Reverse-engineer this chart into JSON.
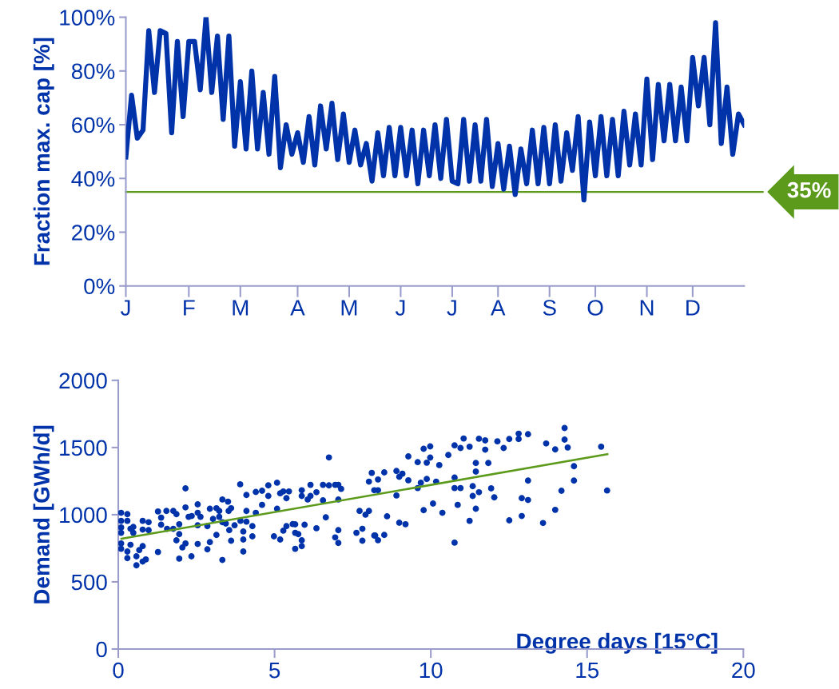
{
  "chart_data": [
    {
      "type": "line",
      "ylabel": "Fraction max. cap [%]",
      "ylim": [
        0,
        100
      ],
      "marker": "none",
      "line_style": "solid",
      "grid": false,
      "categories": [
        "J",
        null,
        null,
        null,
        null,
        null,
        null,
        null,
        null,
        null,
        null,
        "F",
        null,
        null,
        null,
        null,
        null,
        null,
        null,
        null,
        "M",
        null,
        null,
        null,
        null,
        null,
        null,
        null,
        null,
        null,
        "A",
        null,
        null,
        null,
        null,
        null,
        null,
        null,
        null,
        "M",
        null,
        null,
        null,
        null,
        null,
        null,
        null,
        null,
        "J",
        null,
        null,
        null,
        null,
        null,
        null,
        null,
        null,
        "J",
        null,
        null,
        null,
        null,
        null,
        null,
        null,
        "A",
        null,
        null,
        null,
        null,
        null,
        null,
        null,
        null,
        "S",
        null,
        null,
        null,
        null,
        null,
        null,
        null,
        "O",
        null,
        null,
        null,
        null,
        null,
        null,
        null,
        null,
        "N",
        null,
        null,
        null,
        null,
        null,
        null,
        null,
        "D",
        null,
        null,
        null,
        null,
        null,
        null,
        null,
        null,
        null
      ],
      "yticks": [
        {
          "value": 0,
          "label": "0%"
        },
        {
          "value": 20,
          "label": "20%"
        },
        {
          "value": 40,
          "label": "40%"
        },
        {
          "value": 60,
          "label": "60%"
        },
        {
          "value": 80,
          "label": "80%"
        },
        {
          "value": 100,
          "label": "100%"
        }
      ],
      "ref_lines": [
        {
          "axis": "y",
          "value": 35,
          "label": "35%",
          "color": "#5b9a1b"
        }
      ],
      "series": [
        {
          "color": "#0033aa",
          "values": [
            48,
            71,
            55,
            58,
            95,
            72,
            95,
            94,
            57,
            91,
            63,
            91,
            91,
            73,
            100,
            72,
            93,
            62,
            93,
            52,
            76,
            51,
            80,
            51,
            72,
            49,
            78,
            44,
            60,
            49,
            57,
            46,
            63,
            45,
            67,
            51,
            68,
            47,
            64,
            46,
            58,
            45,
            53,
            39,
            57,
            41,
            59,
            41,
            59,
            41,
            58,
            38,
            58,
            41,
            60,
            40,
            62,
            39,
            38,
            62,
            39,
            60,
            39,
            62,
            37,
            53,
            36,
            52,
            34,
            51,
            38,
            58,
            38,
            59,
            38,
            60,
            39,
            57,
            43,
            63,
            32,
            61,
            41,
            63,
            41,
            62,
            41,
            65,
            45,
            64,
            45,
            77,
            47,
            75,
            54,
            75,
            54,
            74,
            54,
            85,
            67,
            85,
            60,
            98,
            53,
            74,
            49,
            64,
            60
          ]
        }
      ]
    },
    {
      "type": "scatter",
      "xlabel": "Degree days [15°C]",
      "ylabel": "Demand [GWh/d]",
      "xlim": [
        0,
        20
      ],
      "ylim": [
        0,
        2000
      ],
      "xticks": [
        0,
        5,
        10,
        15,
        20
      ],
      "yticks": [
        0,
        500,
        1000,
        1500,
        2000
      ],
      "grid": false,
      "series": [
        {
          "type": "scatter",
          "marker": "circle",
          "color": "#0033aa",
          "x": [
            0.09,
            0.09,
            0.09,
            0.09,
            0.09,
            0.09,
            0.29,
            0.29,
            0.29,
            0.29,
            0.39,
            0.39,
            0.48,
            0.48,
            0.58,
            0.58,
            0.67,
            0.78,
            0.78,
            0.78,
            0.78,
            0.88,
            0.97,
            0.97,
            1.27,
            1.27,
            1.37,
            1.37,
            1.54,
            1.56,
            1.76,
            1.76,
            1.86,
            1.86,
            1.95,
            1.95,
            1.95,
            2.05,
            2.15,
            2.15,
            2.15,
            2.25,
            2.34,
            2.35,
            2.54,
            2.54,
            2.54,
            2.54,
            2.63,
            2.85,
            2.85,
            2.93,
            2.93,
            3.03,
            3.14,
            3.14,
            3.23,
            3.23,
            3.33,
            3.33,
            3.33,
            3.44,
            3.51,
            3.53,
            3.55,
            3.61,
            3.61,
            3.72,
            3.9,
            3.91,
            4.0,
            4.0,
            4.0,
            4.1,
            4.1,
            4.1,
            4.29,
            4.29,
            4.4,
            4.4,
            4.6,
            4.6,
            4.8,
            4.8,
            4.98,
            5.08,
            5.08,
            5.18,
            5.18,
            5.28,
            5.28,
            5.38,
            5.38,
            5.46,
            5.58,
            5.66,
            5.66,
            5.66,
            5.76,
            5.87,
            5.87,
            5.87,
            5.87,
            5.96,
            6.06,
            6.15,
            6.15,
            6.34,
            6.34,
            6.55,
            6.55,
            6.64,
            6.74,
            6.74,
            6.94,
            6.94,
            7.04,
            7.04,
            7.04,
            7.04,
            7.13,
            7.62,
            7.72,
            7.81,
            7.81,
            7.91,
            8.02,
            8.02,
            8.11,
            8.19,
            8.19,
            8.22,
            8.31,
            8.31,
            8.31,
            8.51,
            8.51,
            8.6,
            8.9,
            8.9,
            8.99,
            8.99,
            9.09,
            9.19,
            9.28,
            9.28,
            9.58,
            9.58,
            9.68,
            9.77,
            9.77,
            9.87,
            9.87,
            9.98,
            9.98,
            10.07,
            10.17,
            10.27,
            10.37,
            10.56,
            10.76,
            10.76,
            10.76,
            10.76,
            10.86,
            10.95,
            10.95,
            11.05,
            11.24,
            11.24,
            11.34,
            11.34,
            11.44,
            11.44,
            11.44,
            11.54,
            11.54,
            11.74,
            11.74,
            11.84,
            11.93,
            12.03,
            12.13,
            12.33,
            12.51,
            12.51,
            12.81,
            12.81,
            12.91,
            12.91,
            13.11,
            13.11,
            13.11,
            13.59,
            13.69,
            13.98,
            13.98,
            14.18,
            14.28,
            14.28,
            14.38,
            14.58,
            14.58,
            15.45,
            15.64
          ],
          "values": [
            1014,
            954,
            905,
            865,
            786,
            746,
            1004,
            954,
            726,
            677,
            895,
            776,
            909,
            865,
            690,
            623,
            736,
            954,
            889,
            766,
            651,
            667,
            944,
            885,
            1024,
            722,
            978,
            925,
            1028,
            895,
            1028,
            895,
            1004,
            809,
            929,
            855,
            673,
            756,
            1196,
            1054,
            786,
            984,
            690,
            990,
            1077,
            1014,
            921,
            782,
            984,
            915,
            742,
            1044,
            796,
            968,
            1048,
            849,
            984,
            1028,
            1113,
            944,
            663,
            934,
            1097,
            1028,
            885,
            1048,
            806,
            921,
            1226,
            954,
            875,
            815,
            726,
            1147,
            1028,
            948,
            915,
            839,
            1169,
            1014,
            1178,
            1073,
            1218,
            1139,
            839,
            1238,
            1044,
            1159,
            815,
            1173,
            881,
            1123,
            915,
            1173,
            930,
            928,
            865,
            746,
            855,
            1182,
            1139,
            809,
            766,
            925,
            1113,
            1222,
            1139,
            1167,
            899,
            1222,
            1107,
            980,
            1426,
            1218,
            1222,
            831,
            1222,
            1113,
            885,
            790,
            1192,
            865,
            1028,
            895,
            806,
            1000,
            1246,
            1028,
            1311,
            845,
            1182,
            845,
            1262,
            1182,
            810,
            1315,
            849,
            988,
            1325,
            1143,
            1282,
            940,
            1305,
            929,
            1434,
            1256,
            1391,
            1198,
            1238,
            1490,
            1034,
            1387,
            1266,
            1508,
            1425,
            1083,
            1246,
            1369,
            1014,
            1444,
            1516,
            1276,
            1198,
            792,
            1073,
            1496,
            1198,
            1567,
            1506,
            954,
            1212,
            1139,
            1385,
            1321,
            1044,
            1565,
            1167,
            1553,
            1484,
            1385,
            1196,
            1129,
            1546,
            1496,
            1563,
            958,
            1603,
            1563,
            1123,
            990,
            1599,
            1254,
            1109,
            938,
            1530,
            1486,
            1036,
            1178,
            1645,
            1559,
            1500,
            1361,
            1254,
            1506,
            1180
          ]
        },
        {
          "type": "line",
          "color": "#5b9a1b",
          "x": [
            0.1,
            15.65
          ],
          "values": [
            821,
            1450
          ]
        }
      ]
    }
  ]
}
